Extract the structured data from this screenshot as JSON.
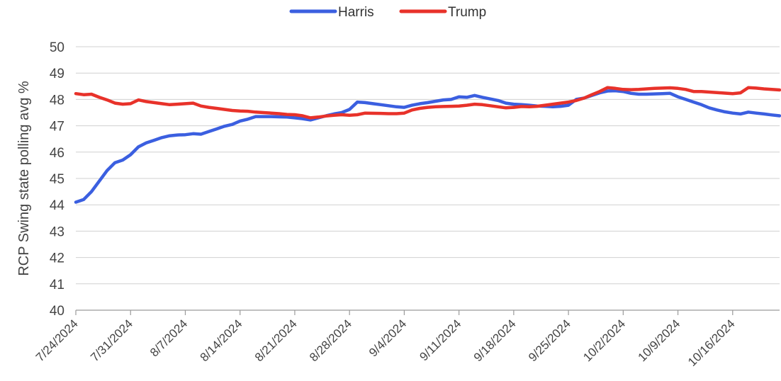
{
  "chart_data": {
    "type": "line",
    "title": "",
    "xlabel": "",
    "ylabel": "RCP Swing state polling avg %",
    "ylim": [
      40,
      50
    ],
    "yticks": [
      40,
      41,
      42,
      43,
      44,
      45,
      46,
      47,
      48,
      49,
      50
    ],
    "grid": true,
    "legend_position": "top-center",
    "xlim": [
      "2024-07-24",
      "2024-10-22"
    ],
    "xticks": [
      "7/24/2024",
      "7/31/2024",
      "8/7/2024",
      "8/14/2024",
      "8/21/2024",
      "8/28/2024",
      "9/4/2024",
      "9/11/2024",
      "9/18/2024",
      "9/25/2024",
      "10/2/2024",
      "10/9/2024",
      "10/16/2024"
    ],
    "series": [
      {
        "name": "Harris",
        "color": "#3b5fe0",
        "points": [
          [
            "2024-07-24",
            44.1
          ],
          [
            "2024-07-25",
            44.2
          ],
          [
            "2024-07-26",
            44.5
          ],
          [
            "2024-07-27",
            44.9
          ],
          [
            "2024-07-28",
            45.3
          ],
          [
            "2024-07-29",
            45.6
          ],
          [
            "2024-07-30",
            45.7
          ],
          [
            "2024-07-31",
            45.9
          ],
          [
            "2024-08-01",
            46.2
          ],
          [
            "2024-08-02",
            46.35
          ],
          [
            "2024-08-03",
            46.45
          ],
          [
            "2024-08-04",
            46.55
          ],
          [
            "2024-08-05",
            46.62
          ],
          [
            "2024-08-06",
            46.65
          ],
          [
            "2024-08-07",
            46.66
          ],
          [
            "2024-08-08",
            46.7
          ],
          [
            "2024-08-09",
            46.68
          ],
          [
            "2024-08-10",
            46.78
          ],
          [
            "2024-08-11",
            46.88
          ],
          [
            "2024-08-12",
            46.98
          ],
          [
            "2024-08-13",
            47.05
          ],
          [
            "2024-08-14",
            47.18
          ],
          [
            "2024-08-15",
            47.25
          ],
          [
            "2024-08-16",
            47.35
          ],
          [
            "2024-08-17",
            47.35
          ],
          [
            "2024-08-18",
            47.35
          ],
          [
            "2024-08-19",
            47.34
          ],
          [
            "2024-08-20",
            47.33
          ],
          [
            "2024-08-21",
            47.3
          ],
          [
            "2024-08-22",
            47.27
          ],
          [
            "2024-08-23",
            47.22
          ],
          [
            "2024-08-24",
            47.3
          ],
          [
            "2024-08-25",
            47.38
          ],
          [
            "2024-08-26",
            47.45
          ],
          [
            "2024-08-27",
            47.5
          ],
          [
            "2024-08-28",
            47.62
          ],
          [
            "2024-08-29",
            47.9
          ],
          [
            "2024-08-30",
            47.88
          ],
          [
            "2024-08-31",
            47.84
          ],
          [
            "2024-09-01",
            47.8
          ],
          [
            "2024-09-02",
            47.76
          ],
          [
            "2024-09-03",
            47.72
          ],
          [
            "2024-09-04",
            47.7
          ],
          [
            "2024-09-05",
            47.78
          ],
          [
            "2024-09-06",
            47.84
          ],
          [
            "2024-09-07",
            47.88
          ],
          [
            "2024-09-08",
            47.93
          ],
          [
            "2024-09-09",
            47.98
          ],
          [
            "2024-09-10",
            48.0
          ],
          [
            "2024-09-11",
            48.1
          ],
          [
            "2024-09-12",
            48.08
          ],
          [
            "2024-09-13",
            48.15
          ],
          [
            "2024-09-14",
            48.08
          ],
          [
            "2024-09-15",
            48.02
          ],
          [
            "2024-09-16",
            47.96
          ],
          [
            "2024-09-17",
            47.86
          ],
          [
            "2024-09-18",
            47.82
          ],
          [
            "2024-09-19",
            47.8
          ],
          [
            "2024-09-20",
            47.78
          ],
          [
            "2024-09-21",
            47.75
          ],
          [
            "2024-09-22",
            47.74
          ],
          [
            "2024-09-23",
            47.72
          ],
          [
            "2024-09-24",
            47.74
          ],
          [
            "2024-09-25",
            47.78
          ],
          [
            "2024-09-26",
            48.0
          ],
          [
            "2024-09-27",
            48.05
          ],
          [
            "2024-09-28",
            48.15
          ],
          [
            "2024-09-29",
            48.25
          ],
          [
            "2024-09-30",
            48.32
          ],
          [
            "2024-10-01",
            48.33
          ],
          [
            "2024-10-02",
            48.3
          ],
          [
            "2024-10-03",
            48.23
          ],
          [
            "2024-10-04",
            48.2
          ],
          [
            "2024-10-05",
            48.2
          ],
          [
            "2024-10-06",
            48.21
          ],
          [
            "2024-10-07",
            48.22
          ],
          [
            "2024-10-08",
            48.23
          ],
          [
            "2024-10-09",
            48.1
          ],
          [
            "2024-10-10",
            48.0
          ],
          [
            "2024-10-11",
            47.9
          ],
          [
            "2024-10-12",
            47.8
          ],
          [
            "2024-10-13",
            47.68
          ],
          [
            "2024-10-14",
            47.6
          ],
          [
            "2024-10-15",
            47.53
          ],
          [
            "2024-10-16",
            47.48
          ],
          [
            "2024-10-17",
            47.45
          ],
          [
            "2024-10-18",
            47.52
          ],
          [
            "2024-10-19",
            47.48
          ],
          [
            "2024-10-20",
            47.45
          ],
          [
            "2024-10-21",
            47.41
          ],
          [
            "2024-10-22",
            47.38
          ]
        ]
      },
      {
        "name": "Trump",
        "color": "#e8322a",
        "points": [
          [
            "2024-07-24",
            48.22
          ],
          [
            "2024-07-25",
            48.18
          ],
          [
            "2024-07-26",
            48.2
          ],
          [
            "2024-07-27",
            48.08
          ],
          [
            "2024-07-28",
            47.98
          ],
          [
            "2024-07-29",
            47.86
          ],
          [
            "2024-07-30",
            47.82
          ],
          [
            "2024-07-31",
            47.84
          ],
          [
            "2024-08-01",
            47.98
          ],
          [
            "2024-08-02",
            47.92
          ],
          [
            "2024-08-03",
            47.88
          ],
          [
            "2024-08-04",
            47.84
          ],
          [
            "2024-08-05",
            47.8
          ],
          [
            "2024-08-06",
            47.82
          ],
          [
            "2024-08-07",
            47.84
          ],
          [
            "2024-08-08",
            47.86
          ],
          [
            "2024-08-09",
            47.75
          ],
          [
            "2024-08-10",
            47.7
          ],
          [
            "2024-08-11",
            47.66
          ],
          [
            "2024-08-12",
            47.62
          ],
          [
            "2024-08-13",
            47.58
          ],
          [
            "2024-08-14",
            47.56
          ],
          [
            "2024-08-15",
            47.55
          ],
          [
            "2024-08-16",
            47.52
          ],
          [
            "2024-08-17",
            47.5
          ],
          [
            "2024-08-18",
            47.48
          ],
          [
            "2024-08-19",
            47.46
          ],
          [
            "2024-08-20",
            47.43
          ],
          [
            "2024-08-21",
            47.42
          ],
          [
            "2024-08-22",
            47.38
          ],
          [
            "2024-08-23",
            47.3
          ],
          [
            "2024-08-24",
            47.33
          ],
          [
            "2024-08-25",
            47.37
          ],
          [
            "2024-08-26",
            47.4
          ],
          [
            "2024-08-27",
            47.42
          ],
          [
            "2024-08-28",
            47.4
          ],
          [
            "2024-08-29",
            47.42
          ],
          [
            "2024-08-30",
            47.48
          ],
          [
            "2024-09-01",
            47.47
          ],
          [
            "2024-09-02",
            47.46
          ],
          [
            "2024-09-03",
            47.46
          ],
          [
            "2024-09-04",
            47.48
          ],
          [
            "2024-09-05",
            47.6
          ],
          [
            "2024-09-06",
            47.66
          ],
          [
            "2024-09-07",
            47.7
          ],
          [
            "2024-09-08",
            47.72
          ],
          [
            "2024-09-09",
            47.73
          ],
          [
            "2024-09-10",
            47.74
          ],
          [
            "2024-09-11",
            47.75
          ],
          [
            "2024-09-12",
            47.78
          ],
          [
            "2024-09-13",
            47.82
          ],
          [
            "2024-09-14",
            47.8
          ],
          [
            "2024-09-15",
            47.76
          ],
          [
            "2024-09-16",
            47.72
          ],
          [
            "2024-09-17",
            47.68
          ],
          [
            "2024-09-18",
            47.7
          ],
          [
            "2024-09-19",
            47.73
          ],
          [
            "2024-09-20",
            47.72
          ],
          [
            "2024-09-21",
            47.74
          ],
          [
            "2024-09-22",
            47.78
          ],
          [
            "2024-09-23",
            47.82
          ],
          [
            "2024-09-24",
            47.86
          ],
          [
            "2024-09-25",
            47.9
          ],
          [
            "2024-09-26",
            47.96
          ],
          [
            "2024-09-27",
            48.05
          ],
          [
            "2024-09-28",
            48.18
          ],
          [
            "2024-09-29",
            48.3
          ],
          [
            "2024-09-30",
            48.45
          ],
          [
            "2024-10-01",
            48.42
          ],
          [
            "2024-10-02",
            48.38
          ],
          [
            "2024-10-03",
            48.37
          ],
          [
            "2024-10-04",
            48.38
          ],
          [
            "2024-10-05",
            48.4
          ],
          [
            "2024-10-06",
            48.42
          ],
          [
            "2024-10-07",
            48.43
          ],
          [
            "2024-10-08",
            48.44
          ],
          [
            "2024-10-09",
            48.42
          ],
          [
            "2024-10-10",
            48.38
          ],
          [
            "2024-10-11",
            48.3
          ],
          [
            "2024-10-12",
            48.3
          ],
          [
            "2024-10-13",
            48.28
          ],
          [
            "2024-10-14",
            48.26
          ],
          [
            "2024-10-15",
            48.24
          ],
          [
            "2024-10-16",
            48.22
          ],
          [
            "2024-10-17",
            48.25
          ],
          [
            "2024-10-18",
            48.45
          ],
          [
            "2024-10-19",
            48.43
          ],
          [
            "2024-10-20",
            48.4
          ],
          [
            "2024-10-21",
            48.38
          ],
          [
            "2024-10-22",
            48.36
          ]
        ]
      }
    ]
  }
}
